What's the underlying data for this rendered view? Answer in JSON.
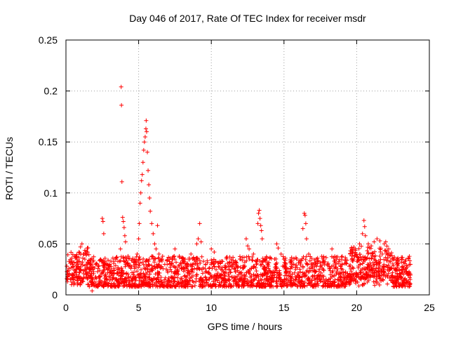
{
  "chart_data": {
    "type": "scatter",
    "title": "Day 046 of 2017, Rate Of TEC Index for receiver msdr",
    "xlabel": "GPS time / hours",
    "ylabel": "ROTI / TECUs",
    "xlim": [
      0,
      25
    ],
    "ylim": [
      0,
      0.25
    ],
    "xticks": [
      0,
      5,
      10,
      15,
      20,
      25
    ],
    "xtick_labels": [
      "0",
      "5",
      "10",
      "15",
      "20",
      "25"
    ],
    "yticks": [
      0,
      0.05,
      0.1,
      0.15,
      0.2,
      0.25
    ],
    "ytick_labels": [
      "0",
      "0.05",
      "0.1",
      "0.15",
      "0.2",
      "0.25"
    ],
    "grid": true,
    "legend": "none",
    "marker": "+",
    "series": [
      {
        "name": "ROTI",
        "color": "#ff0000",
        "points": [
          [
            0.1,
            0.013
          ],
          [
            0.2,
            0.024
          ],
          [
            0.3,
            0.031
          ],
          [
            0.4,
            0.036
          ],
          [
            0.5,
            0.028
          ],
          [
            0.6,
            0.038
          ],
          [
            0.7,
            0.022
          ],
          [
            0.8,
            0.03
          ],
          [
            0.9,
            0.042
          ],
          [
            1.0,
            0.047
          ],
          [
            1.1,
            0.05
          ],
          [
            1.2,
            0.04
          ],
          [
            1.3,
            0.035
          ],
          [
            1.4,
            0.043
          ],
          [
            1.5,
            0.032
          ],
          [
            1.6,
            0.025
          ],
          [
            1.7,
            0.018
          ],
          [
            1.8,
            0.004
          ],
          [
            2.5,
            0.075
          ],
          [
            2.55,
            0.072
          ],
          [
            2.6,
            0.06
          ],
          [
            2.7,
            0.03
          ],
          [
            3.0,
            0.028
          ],
          [
            3.3,
            0.026
          ],
          [
            3.8,
            0.204
          ],
          [
            3.82,
            0.186
          ],
          [
            3.85,
            0.111
          ],
          [
            3.9,
            0.076
          ],
          [
            3.95,
            0.072
          ],
          [
            4.0,
            0.066
          ],
          [
            4.05,
            0.058
          ],
          [
            4.1,
            0.052
          ],
          [
            3.75,
            0.045
          ],
          [
            3.7,
            0.033
          ],
          [
            4.9,
            0.04
          ],
          [
            5.0,
            0.055
          ],
          [
            5.05,
            0.07
          ],
          [
            5.1,
            0.09
          ],
          [
            5.15,
            0.1
          ],
          [
            5.2,
            0.112
          ],
          [
            5.25,
            0.118
          ],
          [
            5.3,
            0.13
          ],
          [
            5.35,
            0.142
          ],
          [
            5.4,
            0.15
          ],
          [
            5.45,
            0.155
          ],
          [
            5.5,
            0.163
          ],
          [
            5.52,
            0.171
          ],
          [
            5.55,
            0.16
          ],
          [
            5.6,
            0.14
          ],
          [
            5.65,
            0.122
          ],
          [
            5.7,
            0.108
          ],
          [
            5.75,
            0.095
          ],
          [
            5.8,
            0.082
          ],
          [
            5.9,
            0.07
          ],
          [
            6.0,
            0.06
          ],
          [
            6.1,
            0.05
          ],
          [
            6.2,
            0.045
          ],
          [
            6.3,
            0.068
          ],
          [
            6.4,
            0.04
          ],
          [
            6.6,
            0.035
          ],
          [
            6.8,
            0.03
          ],
          [
            7.5,
            0.045
          ],
          [
            7.8,
            0.038
          ],
          [
            8.2,
            0.035
          ],
          [
            8.6,
            0.04
          ],
          [
            9.0,
            0.05
          ],
          [
            9.1,
            0.055
          ],
          [
            9.2,
            0.07
          ],
          [
            9.3,
            0.052
          ],
          [
            9.6,
            0.03
          ],
          [
            10.0,
            0.045
          ],
          [
            10.2,
            0.042
          ],
          [
            10.5,
            0.028
          ],
          [
            11.0,
            0.025
          ],
          [
            11.5,
            0.03
          ],
          [
            12.0,
            0.035
          ],
          [
            12.4,
            0.055
          ],
          [
            12.5,
            0.048
          ],
          [
            12.6,
            0.045
          ],
          [
            12.9,
            0.04
          ],
          [
            13.2,
            0.07
          ],
          [
            13.25,
            0.08
          ],
          [
            13.3,
            0.083
          ],
          [
            13.35,
            0.075
          ],
          [
            13.4,
            0.068
          ],
          [
            13.45,
            0.063
          ],
          [
            13.5,
            0.055
          ],
          [
            13.7,
            0.035
          ],
          [
            14.5,
            0.05
          ],
          [
            14.6,
            0.046
          ],
          [
            14.8,
            0.04
          ],
          [
            15.0,
            0.035
          ],
          [
            15.5,
            0.028
          ],
          [
            15.8,
            0.025
          ],
          [
            16.3,
            0.065
          ],
          [
            16.4,
            0.08
          ],
          [
            16.45,
            0.078
          ],
          [
            16.5,
            0.07
          ],
          [
            16.55,
            0.055
          ],
          [
            16.7,
            0.04
          ],
          [
            17.0,
            0.03
          ],
          [
            17.5,
            0.028
          ],
          [
            18.0,
            0.03
          ],
          [
            18.3,
            0.045
          ],
          [
            18.6,
            0.035
          ],
          [
            19.0,
            0.03
          ],
          [
            19.5,
            0.028
          ],
          [
            19.9,
            0.045
          ],
          [
            20.2,
            0.05
          ],
          [
            20.4,
            0.06
          ],
          [
            20.5,
            0.073
          ],
          [
            20.55,
            0.067
          ],
          [
            20.6,
            0.058
          ],
          [
            20.8,
            0.05
          ],
          [
            21.0,
            0.048
          ],
          [
            21.2,
            0.052
          ],
          [
            21.4,
            0.055
          ],
          [
            21.6,
            0.053
          ],
          [
            21.9,
            0.05
          ],
          [
            22.0,
            0.052
          ],
          [
            22.2,
            0.045
          ],
          [
            22.5,
            0.035
          ],
          [
            22.8,
            0.03
          ],
          [
            23.1,
            0.025
          ],
          [
            23.4,
            0.022
          ],
          [
            23.7,
            0.03
          ]
        ]
      }
    ]
  }
}
